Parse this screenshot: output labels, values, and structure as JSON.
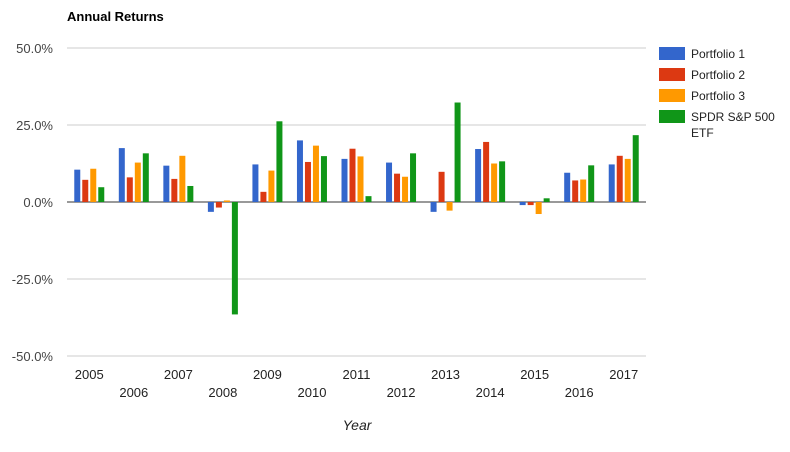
{
  "chart_data": {
    "type": "bar",
    "title": "Annual Returns",
    "xlabel": "Year",
    "ylabel": "",
    "ylim": [
      -50,
      50
    ],
    "yticks": [
      "50.0%",
      "25.0%",
      "0.0%",
      "-25.0%",
      "-50.0%"
    ],
    "categories": [
      "2005",
      "2006",
      "2007",
      "2008",
      "2009",
      "2010",
      "2011",
      "2012",
      "2013",
      "2014",
      "2015",
      "2016",
      "2017"
    ],
    "series": [
      {
        "name": "Portfolio 1",
        "color": "#3366cc",
        "values": [
          10.5,
          17.5,
          11.8,
          -3.2,
          12.2,
          20.0,
          14.0,
          12.8,
          -3.2,
          17.2,
          -1.0,
          9.5,
          12.2
        ]
      },
      {
        "name": "Portfolio 2",
        "color": "#dc3912",
        "values": [
          7.2,
          8.0,
          7.5,
          -1.8,
          3.3,
          13.0,
          17.3,
          9.2,
          9.8,
          19.5,
          -1.0,
          7.0,
          15.0
        ]
      },
      {
        "name": "Portfolio 3",
        "color": "#ff9900",
        "values": [
          10.8,
          12.8,
          15.0,
          0.5,
          10.2,
          18.3,
          14.8,
          8.2,
          -2.8,
          12.5,
          -3.9,
          7.3,
          14.0
        ]
      },
      {
        "name": "SPDR S&P 500 ETF",
        "legend_lines": [
          "SPDR S&P 500",
          "ETF"
        ],
        "color": "#109618",
        "values": [
          4.8,
          15.8,
          5.2,
          -36.5,
          26.2,
          14.9,
          1.9,
          15.8,
          32.3,
          13.2,
          1.2,
          11.9,
          21.7
        ]
      }
    ],
    "grid": true,
    "legend_position": "right"
  }
}
